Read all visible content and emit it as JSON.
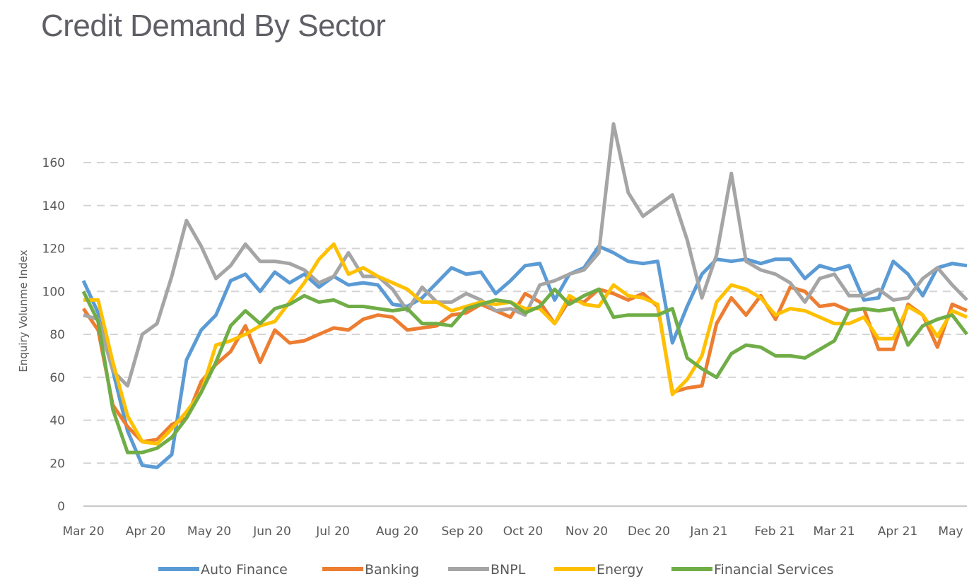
{
  "chart_data": {
    "type": "line",
    "title": "Credit Demand By Sector",
    "xlabel": "",
    "ylabel": "Enquiry Volunme Index",
    "ylim": [
      0,
      170
    ],
    "yticks": [
      0,
      20,
      40,
      60,
      80,
      100,
      120,
      140,
      160
    ],
    "xtick_labels": [
      "Mar 20",
      "Apr 20",
      "May 20",
      "Jun 20",
      "Jul 20",
      "Aug 20",
      "Sep 20",
      "Oct 20",
      "Nov 20",
      "Dec 20",
      "Jan 21",
      "Feb 21",
      "Mar 21",
      "Apr 21",
      "May"
    ],
    "grid": true,
    "legend_position": "bottom",
    "series": [
      {
        "name": "Auto Finance",
        "color": "#5b9bd5",
        "values": [
          105,
          90,
          63,
          35,
          19,
          18,
          24,
          68,
          82,
          89,
          105,
          108,
          100,
          109,
          104,
          108,
          102,
          107,
          103,
          104,
          103,
          94,
          93,
          97,
          104,
          111,
          108,
          109,
          99,
          105,
          112,
          113,
          96,
          108,
          111,
          121,
          118,
          114,
          113,
          114,
          76,
          93,
          108,
          115,
          114,
          115,
          113,
          115,
          115,
          106,
          112,
          110,
          112,
          96,
          97,
          114,
          108,
          98,
          111,
          113,
          112
        ]
      },
      {
        "name": "Banking",
        "color": "#ed7d31",
        "values": [
          92,
          82,
          47,
          37,
          30,
          31,
          38,
          41,
          58,
          66,
          72,
          84,
          67,
          82,
          76,
          77,
          80,
          83,
          82,
          87,
          89,
          88,
          82,
          83,
          84,
          89,
          90,
          94,
          91,
          88,
          99,
          95,
          85,
          96,
          95,
          101,
          99,
          96,
          99,
          93,
          53,
          55,
          56,
          85,
          97,
          89,
          98,
          87,
          102,
          100,
          93,
          94,
          91,
          92,
          73,
          73,
          94,
          89,
          74,
          94,
          91
        ]
      },
      {
        "name": "BNPL",
        "color": "#a5a5a5",
        "values": [
          89,
          87,
          63,
          56,
          80,
          85,
          107,
          133,
          121,
          106,
          112,
          122,
          114,
          114,
          113,
          110,
          104,
          107,
          118,
          107,
          107,
          101,
          91,
          102,
          95,
          95,
          99,
          96,
          91,
          92,
          89,
          103,
          105,
          108,
          110,
          118,
          178,
          146,
          135,
          140,
          145,
          124,
          97,
          117,
          155,
          114,
          110,
          108,
          104,
          95,
          106,
          108,
          98,
          98,
          101,
          96,
          97,
          106,
          111,
          103,
          96
        ]
      },
      {
        "name": "Energy",
        "color": "#ffc000",
        "values": [
          96,
          96,
          67,
          42,
          30,
          29,
          36,
          44,
          53,
          75,
          77,
          80,
          84,
          86,
          95,
          104,
          115,
          122,
          108,
          111,
          107,
          104,
          101,
          95,
          95,
          91,
          93,
          95,
          94,
          95,
          92,
          92,
          85,
          98,
          94,
          93,
          103,
          98,
          97,
          94,
          52,
          59,
          70,
          95,
          103,
          101,
          97,
          89,
          92,
          91,
          88,
          85,
          85,
          88,
          78,
          78,
          93,
          89,
          79,
          91,
          88
        ]
      },
      {
        "name": "Financial Services",
        "color": "#70ad47",
        "values": [
          100,
          86,
          45,
          25,
          25,
          27,
          32,
          41,
          53,
          67,
          84,
          91,
          85,
          92,
          94,
          98,
          95,
          96,
          93,
          93,
          92,
          91,
          92,
          85,
          85,
          84,
          92,
          94,
          96,
          95,
          90,
          93,
          101,
          94,
          98,
          101,
          88,
          89,
          89,
          89,
          92,
          69,
          64,
          60,
          71,
          75,
          74,
          70,
          70,
          69,
          73,
          77,
          91,
          92,
          91,
          92,
          75,
          84,
          87,
          89,
          80
        ]
      }
    ]
  }
}
